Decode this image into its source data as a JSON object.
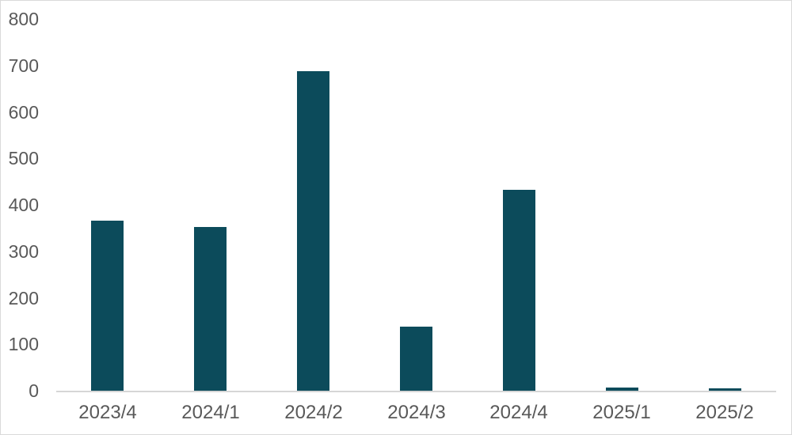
{
  "chart_data": {
    "type": "bar",
    "title": "",
    "xlabel": "",
    "ylabel": "",
    "categories": [
      "2023/4",
      "2024/1",
      "2024/2",
      "2024/3",
      "2024/4",
      "2025/1",
      "2025/2"
    ],
    "values": [
      366,
      352,
      688,
      138,
      433,
      7,
      5
    ],
    "yticks": [
      0,
      100,
      200,
      300,
      400,
      500,
      600,
      700,
      800
    ],
    "ylim": [
      0,
      800
    ],
    "grid": "off",
    "legend": "none",
    "colors": {
      "bar": "#0C4B5B",
      "axis_line": "#D6D6D6",
      "tick_label": "#595959",
      "canvas_border": "#D9D9D9"
    }
  }
}
